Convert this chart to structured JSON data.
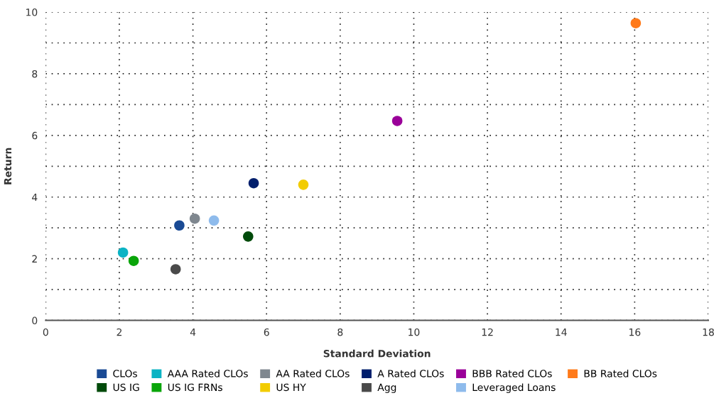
{
  "chart_data": {
    "type": "scatter",
    "xlabel": "Standard Deviation",
    "ylabel": "Return",
    "xlim": [
      0,
      18
    ],
    "xticks": [
      0,
      2,
      4,
      6,
      8,
      10,
      12,
      14,
      16,
      18
    ],
    "ylim": [
      0,
      10
    ],
    "yticks": [
      0,
      {
        "value": 1,
        "label": null
      },
      2,
      {
        "value": 3,
        "label": null
      },
      4,
      {
        "value": 5,
        "label": null
      },
      6,
      {
        "value": 7,
        "label": null
      },
      8,
      {
        "value": 9,
        "label": null
      },
      10
    ],
    "grid": true,
    "legend": "bottom",
    "marker": "circle",
    "series": [
      {
        "name": "CLOs",
        "color": "#1a4a94",
        "x": [
          3.63
        ],
        "values": [
          3.08
        ]
      },
      {
        "name": "AAA Rated CLOs",
        "color": "#0bb3c4",
        "x": [
          2.1
        ],
        "values": [
          2.2
        ]
      },
      {
        "name": "AA Rated CLOs",
        "color": "#7f878f",
        "x": [
          4.05
        ],
        "values": [
          3.3
        ]
      },
      {
        "name": "A Rated CLOs",
        "color": "#001e6c",
        "x": [
          5.65
        ],
        "values": [
          4.45
        ]
      },
      {
        "name": "BBB Rated CLOs",
        "color": "#9a0099",
        "x": [
          9.55
        ],
        "values": [
          6.47
        ]
      },
      {
        "name": "BB Rated CLOs",
        "color": "#ff7a1a",
        "x": [
          16.03
        ],
        "values": [
          9.64
        ]
      },
      {
        "name": "US IG",
        "color": "#004a0a",
        "x": [
          5.5
        ],
        "values": [
          2.72
        ]
      },
      {
        "name": "US IG FRNs",
        "color": "#0aa50a",
        "x": [
          2.39
        ],
        "values": [
          1.93
        ]
      },
      {
        "name": "US HY",
        "color": "#f2cc00",
        "x": [
          7.0
        ],
        "values": [
          4.4
        ]
      },
      {
        "name": "Agg",
        "color": "#4a4a4a",
        "x": [
          3.53
        ],
        "values": [
          1.66
        ]
      },
      {
        "name": "Leveraged Loans",
        "color": "#8ebbec",
        "x": [
          4.57
        ],
        "values": [
          3.24
        ]
      }
    ]
  }
}
